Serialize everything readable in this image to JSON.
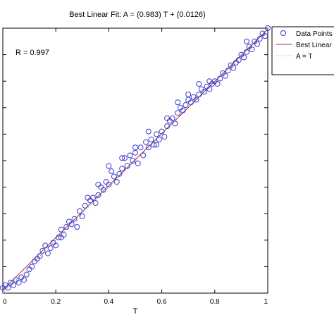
{
  "chart_data": {
    "type": "scatter",
    "title": "Best Linear Fit:  A = (0.983) T + (0.0126)",
    "xlabel": "T",
    "ylabel": "",
    "xlim": [
      0,
      1
    ],
    "ylim": [
      0,
      1
    ],
    "x_ticks": [
      0,
      0.2,
      0.4,
      0.6,
      0.8,
      1
    ],
    "x_tick_labels": [
      "0",
      "0.2",
      "0.4",
      "0.6",
      "0.8",
      "1"
    ],
    "y_ticks": [
      0,
      0.1,
      0.2,
      0.3,
      0.4,
      0.5,
      0.6,
      0.7,
      0.8,
      0.9,
      1
    ],
    "grid": false,
    "legend_placement": "outside-top-right",
    "annotation": "R = 0.997",
    "fit": {
      "slope": 0.983,
      "intercept": 0.0126
    },
    "series": [
      {
        "name": "Data Points",
        "marker": "circle",
        "color": "#3b3bd0",
        "points": [
          [
            0.0,
            0.02
          ],
          [
            0.01,
            0.03
          ],
          [
            0.02,
            0.02
          ],
          [
            0.03,
            0.04
          ],
          [
            0.04,
            0.03
          ],
          [
            0.05,
            0.05
          ],
          [
            0.06,
            0.04
          ],
          [
            0.07,
            0.06
          ],
          [
            0.08,
            0.05
          ],
          [
            0.09,
            0.07
          ],
          [
            0.1,
            0.09
          ],
          [
            0.11,
            0.1
          ],
          [
            0.12,
            0.12
          ],
          [
            0.13,
            0.13
          ],
          [
            0.14,
            0.14
          ],
          [
            0.15,
            0.16
          ],
          [
            0.16,
            0.18
          ],
          [
            0.17,
            0.15
          ],
          [
            0.18,
            0.17
          ],
          [
            0.19,
            0.19
          ],
          [
            0.2,
            0.18
          ],
          [
            0.21,
            0.21
          ],
          [
            0.22,
            0.24
          ],
          [
            0.23,
            0.22
          ],
          [
            0.24,
            0.25
          ],
          [
            0.25,
            0.27
          ],
          [
            0.26,
            0.26
          ],
          [
            0.27,
            0.28
          ],
          [
            0.28,
            0.25
          ],
          [
            0.29,
            0.31
          ],
          [
            0.3,
            0.29
          ],
          [
            0.31,
            0.33
          ],
          [
            0.32,
            0.36
          ],
          [
            0.33,
            0.35
          ],
          [
            0.34,
            0.36
          ],
          [
            0.35,
            0.34
          ],
          [
            0.36,
            0.37
          ],
          [
            0.37,
            0.4
          ],
          [
            0.38,
            0.39
          ],
          [
            0.39,
            0.42
          ],
          [
            0.4,
            0.41
          ],
          [
            0.41,
            0.46
          ],
          [
            0.42,
            0.44
          ],
          [
            0.43,
            0.42
          ],
          [
            0.44,
            0.45
          ],
          [
            0.45,
            0.47
          ],
          [
            0.46,
            0.51
          ],
          [
            0.47,
            0.48
          ],
          [
            0.48,
            0.52
          ],
          [
            0.49,
            0.5
          ],
          [
            0.5,
            0.53
          ],
          [
            0.51,
            0.49
          ],
          [
            0.52,
            0.55
          ],
          [
            0.53,
            0.52
          ],
          [
            0.54,
            0.57
          ],
          [
            0.55,
            0.55
          ],
          [
            0.56,
            0.58
          ],
          [
            0.57,
            0.56
          ],
          [
            0.58,
            0.6
          ],
          [
            0.59,
            0.58
          ],
          [
            0.6,
            0.61
          ],
          [
            0.61,
            0.59
          ],
          [
            0.62,
            0.63
          ],
          [
            0.63,
            0.65
          ],
          [
            0.64,
            0.66
          ],
          [
            0.65,
            0.64
          ],
          [
            0.66,
            0.68
          ],
          [
            0.67,
            0.7
          ],
          [
            0.68,
            0.69
          ],
          [
            0.69,
            0.71
          ],
          [
            0.7,
            0.73
          ],
          [
            0.71,
            0.72
          ],
          [
            0.72,
            0.74
          ],
          [
            0.73,
            0.73
          ],
          [
            0.74,
            0.75
          ],
          [
            0.75,
            0.77
          ],
          [
            0.76,
            0.76
          ],
          [
            0.77,
            0.78
          ],
          [
            0.78,
            0.77
          ],
          [
            0.79,
            0.79
          ],
          [
            0.8,
            0.8
          ],
          [
            0.81,
            0.79
          ],
          [
            0.82,
            0.81
          ],
          [
            0.83,
            0.83
          ],
          [
            0.84,
            0.82
          ],
          [
            0.85,
            0.84
          ],
          [
            0.86,
            0.86
          ],
          [
            0.87,
            0.85
          ],
          [
            0.88,
            0.87
          ],
          [
            0.89,
            0.88
          ],
          [
            0.9,
            0.9
          ],
          [
            0.91,
            0.89
          ],
          [
            0.92,
            0.91
          ],
          [
            0.93,
            0.93
          ],
          [
            0.94,
            0.92
          ],
          [
            0.95,
            0.95
          ],
          [
            0.96,
            0.94
          ],
          [
            0.97,
            0.96
          ],
          [
            0.98,
            0.98
          ],
          [
            0.99,
            0.97
          ],
          [
            1.0,
            1.0
          ],
          [
            0.22,
            0.21
          ],
          [
            0.36,
            0.41
          ],
          [
            0.4,
            0.48
          ],
          [
            0.45,
            0.51
          ],
          [
            0.5,
            0.55
          ],
          [
            0.55,
            0.61
          ],
          [
            0.58,
            0.56
          ],
          [
            0.62,
            0.66
          ],
          [
            0.66,
            0.72
          ],
          [
            0.7,
            0.75
          ],
          [
            0.74,
            0.79
          ],
          [
            0.78,
            0.8
          ],
          [
            0.92,
            0.95
          ]
        ]
      },
      {
        "name": "Best Linear Fit",
        "kind": "line",
        "color": "#b03030",
        "style": "solid"
      },
      {
        "name": "A = T",
        "kind": "line",
        "color": "#999999",
        "style": "dotted"
      }
    ]
  }
}
